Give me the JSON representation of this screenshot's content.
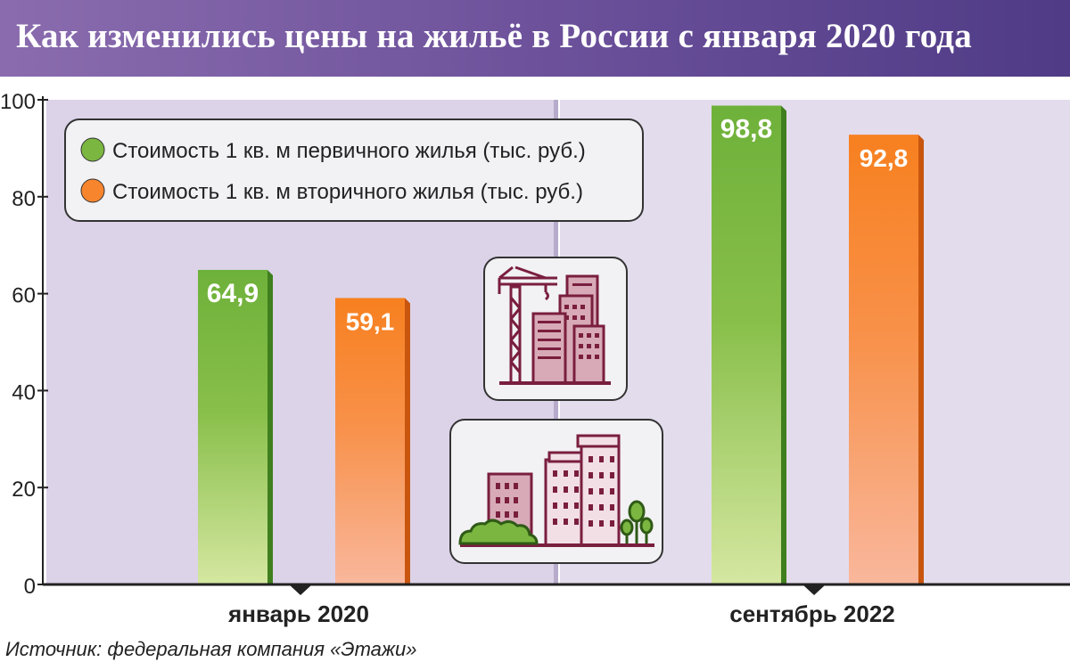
{
  "title": "Как изменились цены на жильё в России с января 2020 года",
  "source": "Источник: федеральная компания «Этажи»",
  "icons": [
    "construction-crane-icon",
    "city-buildings-icon"
  ],
  "colors": {
    "primary": "#7ab640",
    "secondary": "#f7852d",
    "title_bar": "#6a4f99",
    "panel_left": "#dcd3e8",
    "panel_right": "#e3dcec"
  },
  "chart_data": {
    "type": "bar",
    "title": "Как изменились цены на жильё в России с января 2020 года",
    "categories": [
      "январь 2020",
      "сентябрь 2022"
    ],
    "series": [
      {
        "name": "Стоимость 1 кв. м первичного жилья (тыс. руб.)",
        "values": [
          64.9,
          98.8
        ],
        "labels": [
          "64,9",
          "98,8"
        ],
        "color": "#7ab640"
      },
      {
        "name": "Стоимость 1 кв. м вторичного жилья (тыс. руб.)",
        "values": [
          59.1,
          92.8
        ],
        "labels": [
          "59,1",
          "92,8"
        ],
        "color": "#f7852d"
      }
    ],
    "yticks": [
      "0",
      "20",
      "40",
      "60",
      "80",
      "100"
    ],
    "ylim": [
      0,
      100
    ],
    "legend_position": "top-left",
    "grid": false
  }
}
